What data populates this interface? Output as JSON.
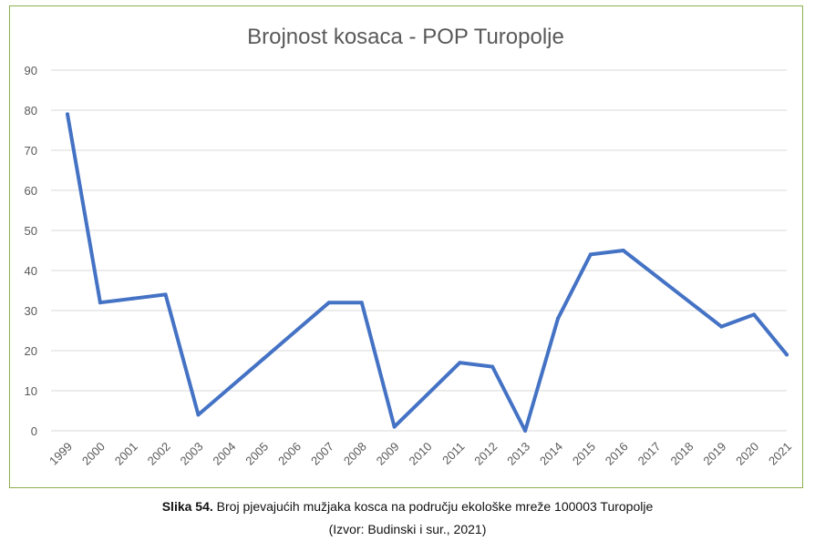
{
  "chart_data": {
    "type": "line",
    "title": "Brojnost kosaca - POP Turopolje",
    "xlabel": "",
    "ylabel": "",
    "ylim": [
      0,
      90
    ],
    "yticks": [
      0,
      10,
      20,
      30,
      40,
      50,
      60,
      70,
      80,
      90
    ],
    "grid": true,
    "legend": "none",
    "categories": [
      "1999",
      "2000",
      "2001",
      "2002",
      "2003",
      "2004",
      "2005",
      "2006",
      "2007",
      "2008",
      "2009",
      "2010",
      "2011",
      "2012",
      "2013",
      "2014",
      "2015",
      "2016",
      "2017",
      "2018",
      "2019",
      "2020",
      "2021"
    ],
    "series": [
      {
        "color": "#4472c4",
        "values": [
          79,
          32,
          33,
          34,
          4,
          11,
          18,
          25,
          32,
          32,
          1,
          9,
          17,
          16,
          0,
          28,
          44,
          45,
          null,
          null,
          26,
          29,
          19
        ],
        "connect_gaps": true
      }
    ]
  },
  "caption": {
    "label": "Slika 54.",
    "text": " Broj pjevajućih mužjaka kosca na području ekološke mreže 100003 Turopolje",
    "source": "(Izvor: Budinski i sur., 2021)"
  },
  "colors": {
    "frame": "#8db04f",
    "grid": "#d9d9d9",
    "text": "#595959",
    "line": "#4472c4"
  }
}
